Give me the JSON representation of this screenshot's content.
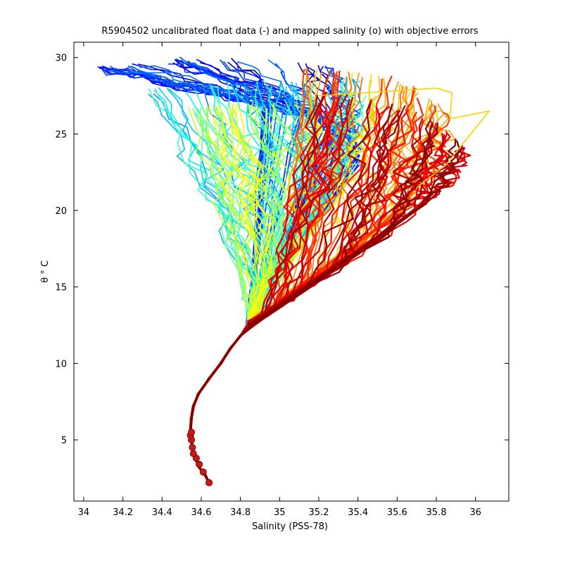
{
  "chart_data": {
    "type": "line",
    "title": "R5904502 uncalibrated float data (-) and mapped salinity (o) with objective errors",
    "xlabel": "Salinity (PSS-78)",
    "ylabel": "θ ° C",
    "xlim": [
      33.95,
      36.17
    ],
    "ylim": [
      1.0,
      31.0
    ],
    "xticks": [
      34,
      34.2,
      34.4,
      34.6,
      34.8,
      35,
      35.2,
      35.4,
      35.6,
      35.8,
      36
    ],
    "xtick_labels": [
      "34",
      "34.2",
      "34.4",
      "34.6",
      "34.8",
      "35",
      "35.2",
      "35.4",
      "35.6",
      "35.8",
      "36"
    ],
    "yticks": [
      5,
      10,
      15,
      20,
      25,
      30
    ],
    "ytick_labels": [
      "5",
      "10",
      "15",
      "20",
      "25",
      "30"
    ],
    "grid": false,
    "legend": "none",
    "colormap": "jet (profile index: early = blue, late = dark red)",
    "colors": {
      "early": "#0000a0",
      "mid": "#28e0d8",
      "late": "#8b0000",
      "mapped_marker": "#cc1a1a"
    },
    "deep_mode": {
      "x": [
        34.64,
        34.62,
        34.59,
        34.57,
        34.555,
        34.55,
        34.545,
        34.55,
        34.56,
        34.585,
        34.64,
        34.7,
        34.75,
        34.8,
        34.85
      ],
      "y": [
        2.2,
        2.7,
        3.2,
        3.8,
        4.4,
        5.0,
        5.6,
        6.4,
        7.2,
        8.0,
        9.0,
        10.0,
        11.0,
        11.8,
        12.5
      ]
    },
    "mapped_salinity": {
      "x": [
        34.64,
        34.61,
        34.59,
        34.575,
        34.56,
        34.555,
        34.55,
        34.545,
        34.55
      ],
      "y": [
        2.2,
        2.9,
        3.4,
        3.8,
        4.1,
        4.5,
        5.0,
        5.3,
        5.5
      ]
    },
    "envelopes": [
      {
        "name": "",
        "top": [
          [
            34.05,
            29.2
          ],
          [
            34.5,
            29.8
          ],
          [
            35.3,
            29.5
          ]
        ],
        "bottom": [
          [
            34.9,
            27.0
          ],
          [
            35.3,
            25.5
          ],
          [
            35.4,
            23.0
          ]
        ],
        "t_range": [
          0.05,
          0.25
        ]
      },
      {
        "name": "",
        "top": [
          [
            34.3,
            27.8
          ],
          [
            34.9,
            28.3
          ],
          [
            35.4,
            28.5
          ]
        ],
        "bottom": [
          [
            34.85,
            15.0
          ],
          [
            35.0,
            19.0
          ],
          [
            35.35,
            23.0
          ]
        ],
        "t_range": [
          0.25,
          0.45
        ]
      },
      {
        "name": "",
        "top": [
          [
            34.5,
            26.5
          ],
          [
            34.9,
            27.0
          ],
          [
            35.5,
            27.5
          ]
        ],
        "bottom": [
          [
            34.8,
            14.0
          ],
          [
            35.0,
            17.0
          ],
          [
            35.3,
            21.0
          ]
        ],
        "t_range": [
          0.45,
          0.65
        ]
      },
      {
        "name": "",
        "top": [
          [
            35.1,
            29.3
          ],
          [
            35.6,
            28.5
          ],
          [
            35.85,
            26.5
          ]
        ],
        "bottom": [
          [
            34.95,
            13.5
          ],
          [
            35.4,
            17.5
          ],
          [
            35.75,
            21.5
          ]
        ],
        "t_range": [
          0.65,
          0.85
        ]
      },
      {
        "name": "",
        "top": [
          [
            35.2,
            27.8
          ],
          [
            35.7,
            26.5
          ],
          [
            35.95,
            24.0
          ]
        ],
        "bottom": [
          [
            34.9,
            13.0
          ],
          [
            35.4,
            17.0
          ],
          [
            35.8,
            21.0
          ]
        ],
        "t_range": [
          0.85,
          1.0
        ]
      }
    ]
  }
}
